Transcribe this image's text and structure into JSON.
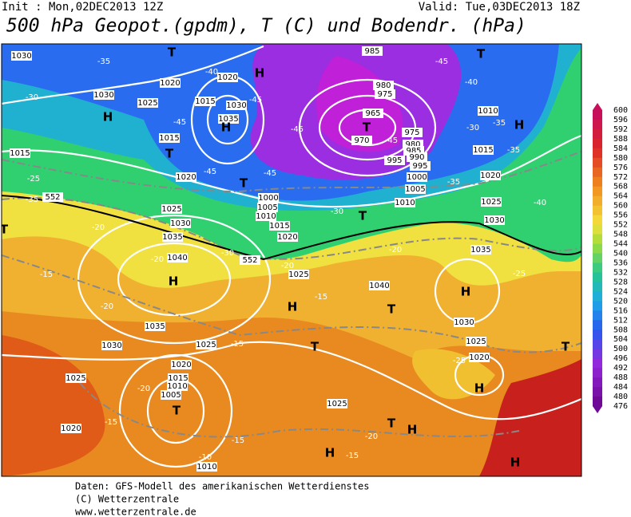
{
  "header": {
    "init": "Init : Mon,02DEC2013 12Z",
    "valid": "Valid: Tue,03DEC2013 18Z",
    "title": "500 hPa Geopot.(gpdm), T (C) und Bodendr. (hPa)"
  },
  "map": {
    "labels": [
      "1030",
      "-35",
      "T",
      "H",
      "985",
      "-45",
      "T",
      "-40",
      "1020",
      "1020",
      "-40",
      "-30",
      "1030",
      "1025",
      "1015",
      "1030",
      "-45",
      "980",
      "975",
      "H",
      "-45",
      "1035",
      "H",
      "-45",
      "T",
      "965",
      "1010",
      "-35",
      "H",
      "-30",
      "975",
      "1015",
      "970",
      "980",
      "-45",
      "1015",
      "T",
      "985",
      "990",
      "995",
      "995",
      "1015",
      "-35",
      "-25",
      "1020",
      "-45",
      "-45",
      "T",
      "1000",
      "1020",
      "-35",
      "1005",
      "-35",
      "552",
      "1000",
      "1005",
      "1010",
      "1010",
      "1025",
      "-40",
      "1025",
      "T",
      "-30",
      "T",
      "1015",
      "1030",
      "1030",
      "-20",
      "1020",
      "1035",
      "-30",
      "552",
      "1040",
      "-20",
      "-20",
      "1035",
      "-20",
      "-15",
      "1025",
      "H",
      "-25",
      "1040",
      "H",
      "-20",
      "-15",
      "H",
      "T",
      "1035",
      "1030",
      "1030",
      "1025",
      "-15",
      "T",
      "1025",
      "T",
      "-25",
      "1020",
      "1025",
      "1020",
      "1015",
      "1010",
      "1005",
      "-20",
      "H",
      "T",
      "-15",
      "1025",
      "T",
      "H",
      "1020",
      "-20",
      "-15",
      "H",
      "-15",
      "-10",
      "1010",
      "H"
    ]
  },
  "colorbar": {
    "labels": [
      "600",
      "596",
      "592",
      "588",
      "584",
      "580",
      "576",
      "572",
      "568",
      "564",
      "560",
      "556",
      "552",
      "548",
      "544",
      "540",
      "536",
      "532",
      "528",
      "524",
      "520",
      "516",
      "512",
      "508",
      "504",
      "500",
      "496",
      "492",
      "488",
      "484",
      "480",
      "476"
    ]
  },
  "footer": {
    "line1": "Daten: GFS-Modell des amerikanischen Wetterdienstes",
    "line2": "(C) Wetterzentrale",
    "line3": "www.wetterzentrale.de"
  }
}
